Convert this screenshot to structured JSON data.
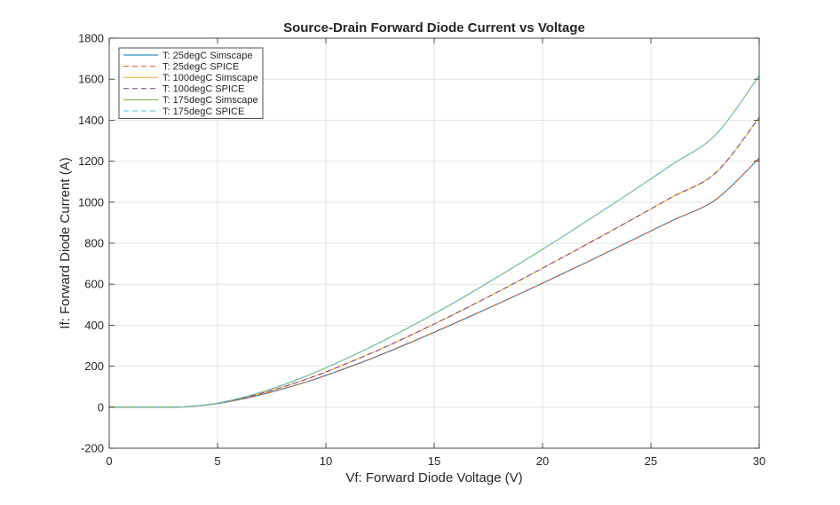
{
  "chart_data": {
    "type": "line",
    "title": "Source-Drain Forward Diode Current vs Voltage",
    "xlabel": "Vf: Forward Diode Voltage (V)",
    "ylabel": "If: Forward Diode Current (A)",
    "xlim": [
      0,
      30
    ],
    "ylim": [
      -200,
      1800
    ],
    "xticks": [
      "0",
      "5",
      "10",
      "15",
      "20",
      "25",
      "30"
    ],
    "yticks": [
      "-200",
      "0",
      "200",
      "400",
      "600",
      "800",
      "1000",
      "1200",
      "1400",
      "1600",
      "1800"
    ],
    "grid": true,
    "legend_position": "top-left",
    "x": [
      0,
      1,
      2,
      3,
      3.5,
      4,
      4.5,
      5,
      6,
      7,
      8,
      9,
      10,
      12,
      14,
      16,
      18,
      20,
      22,
      24,
      26,
      28,
      30
    ],
    "series": [
      {
        "name": "T: 25degC Simscape",
        "color": "#0072BD",
        "dash": "solid",
        "values": [
          0,
          0,
          0,
          0.5,
          2,
          6,
          11,
          18,
          37,
          61,
          89,
          120,
          155,
          233,
          320,
          412,
          507,
          605,
          705,
          808,
          911,
          1013,
          1215
        ]
      },
      {
        "name": "T: 25degC SPICE",
        "color": "#D95319",
        "dash": "dashed",
        "values": [
          0,
          0,
          0,
          0.5,
          2,
          6,
          11,
          18,
          37,
          61,
          89,
          120,
          155,
          233,
          320,
          412,
          507,
          605,
          705,
          808,
          911,
          1013,
          1215
        ]
      },
      {
        "name": "T: 100degC Simscape",
        "color": "#EDB120",
        "dash": "solid",
        "values": [
          0,
          0,
          0,
          0.5,
          2,
          6,
          12,
          19,
          40,
          67,
          98,
          133,
          172,
          259,
          355,
          458,
          566,
          678,
          792,
          908,
          1026,
          1144,
          1413
        ]
      },
      {
        "name": "T: 100degC SPICE",
        "color": "#7E2F8E",
        "dash": "dashed",
        "values": [
          0,
          0,
          0,
          0.5,
          2,
          6,
          12,
          19,
          40,
          67,
          98,
          133,
          172,
          259,
          355,
          458,
          566,
          678,
          792,
          908,
          1026,
          1144,
          1413
        ]
      },
      {
        "name": "T: 175degC Simscape",
        "color": "#77AC30",
        "dash": "solid",
        "values": [
          0,
          0,
          0,
          0.5,
          2,
          6,
          12,
          20,
          43,
          73,
          108,
          148,
          192,
          290,
          398,
          515,
          640,
          770,
          905,
          1043,
          1185,
          1330,
          1618
        ]
      },
      {
        "name": "T: 175degC SPICE",
        "color": "#4DBEEE",
        "dash": "dashed",
        "values": [
          0,
          0,
          0,
          0.5,
          2,
          6,
          12,
          20,
          43,
          73,
          108,
          148,
          192,
          290,
          398,
          515,
          640,
          770,
          905,
          1043,
          1185,
          1330,
          1618
        ]
      }
    ]
  }
}
